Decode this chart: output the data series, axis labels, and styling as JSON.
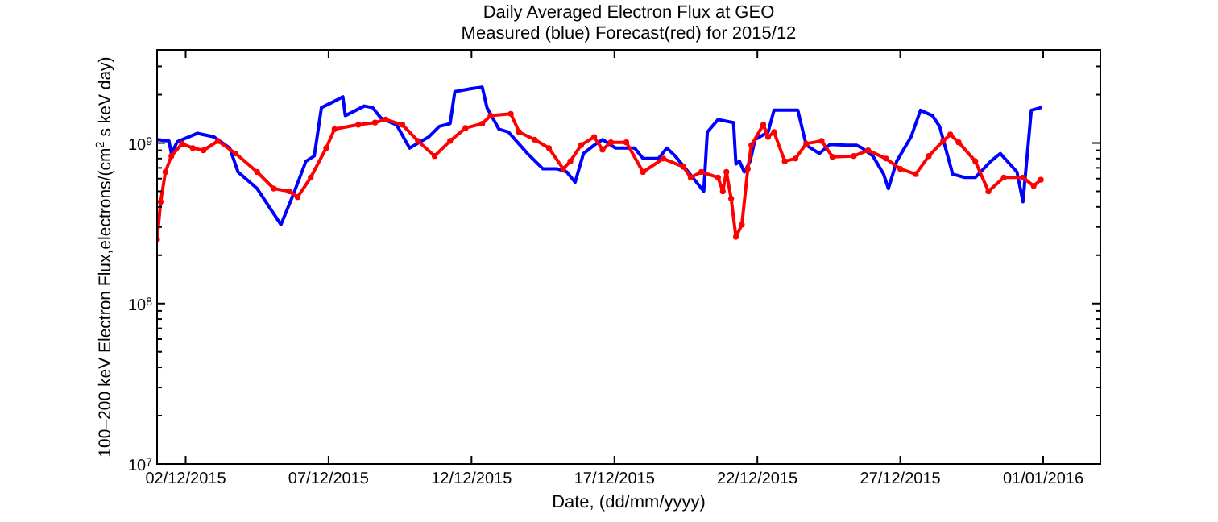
{
  "chart_data": {
    "type": "line",
    "title": "Daily Averaged Electron Flux at GEO",
    "subtitle": "Measured (blue) Forecast(red) for 2015/12",
    "xlabel": "Date, (dd/mm/yyyy)",
    "ylabel": "100–200 keV Electron Flux,electrons/(cm$^{2}$ s keV day)",
    "log": "y",
    "grid": false,
    "xlim": [
      "2015-12-01",
      "2016-01-03"
    ],
    "xticks": [
      {
        "value": "2015-12-02",
        "label": "02/12/2015"
      },
      {
        "value": "2015-12-07",
        "label": "07/12/2015"
      },
      {
        "value": "2015-12-12",
        "label": "12/12/2015"
      },
      {
        "value": "2015-12-17",
        "label": "17/12/2015"
      },
      {
        "value": "2015-12-22",
        "label": "22/12/2015"
      },
      {
        "value": "2015-12-27",
        "label": "27/12/2015"
      },
      {
        "value": "2016-01-01",
        "label": "01/01/2016"
      }
    ],
    "ylim": [
      10000000.0,
      3800000000.0
    ],
    "yticks": [
      {
        "value": 10000000.0,
        "label": "10$^{7}$"
      },
      {
        "value": 20000000.0,
        "label": null
      },
      {
        "value": 30000000.0,
        "label": null
      },
      {
        "value": 40000000.0,
        "label": null
      },
      {
        "value": 50000000.0,
        "label": null
      },
      {
        "value": 60000000.0,
        "label": null
      },
      {
        "value": 70000000.0,
        "label": null
      },
      {
        "value": 80000000.0,
        "label": null
      },
      {
        "value": 90000000.0,
        "label": null
      },
      {
        "value": 100000000.0,
        "label": "10$^{8}$"
      },
      {
        "value": 200000000.0,
        "label": null
      },
      {
        "value": 300000000.0,
        "label": null
      },
      {
        "value": 400000000.0,
        "label": null
      },
      {
        "value": 500000000.0,
        "label": null
      },
      {
        "value": 600000000.0,
        "label": null
      },
      {
        "value": 700000000.0,
        "label": null
      },
      {
        "value": 800000000.0,
        "label": null
      },
      {
        "value": 900000000.0,
        "label": null
      },
      {
        "value": 1000000000.0,
        "label": "10$^{9}$"
      },
      {
        "value": 2000000000.0,
        "label": null
      },
      {
        "value": 3000000000.0,
        "label": null
      }
    ],
    "series": [
      {
        "color": "#0000ff",
        "marker": "none",
        "x": [
          "2015-12-01T00:00",
          "2015-12-01T10:00",
          "2015-12-01T12:00",
          "2015-12-01T17:00",
          "2015-12-02T10:00",
          "2015-12-03T00:00",
          "2015-12-03T13:00",
          "2015-12-03T20:00",
          "2015-12-04T12:00",
          "2015-12-05T08:00",
          "2015-12-05T18:00",
          "2015-12-06T05:00",
          "2015-12-06T12:00",
          "2015-12-06T18:00",
          "2015-12-07T08:00",
          "2015-12-07T12:00",
          "2015-12-07T14:00",
          "2015-12-08T06:00",
          "2015-12-08T13:00",
          "2015-12-08T20:00",
          "2015-12-09T09:00",
          "2015-12-09T20:00",
          "2015-12-10T12:00",
          "2015-12-10T21:00",
          "2015-12-11T06:00",
          "2015-12-11T10:00",
          "2015-12-12T00:00",
          "2015-12-12T09:00",
          "2015-12-12T13:00",
          "2015-12-12T23:00",
          "2015-12-13T07:00",
          "2015-12-13T23:00",
          "2015-12-14T12:00",
          "2015-12-15T00:00",
          "2015-12-15T08:00",
          "2015-12-15T15:00",
          "2015-12-15T22:00",
          "2015-12-16T07:00",
          "2015-12-16T14:00",
          "2015-12-17T01:00",
          "2015-12-17T17:00",
          "2015-12-18T00:00",
          "2015-12-18T13:00",
          "2015-12-18T20:00",
          "2015-12-19T03:00",
          "2015-12-19T14:00",
          "2015-12-20T03:00",
          "2015-12-20T06:00",
          "2015-12-20T15:00",
          "2015-12-21T04:00",
          "2015-12-21T06:00",
          "2015-12-21T09:00",
          "2015-12-21T13:00",
          "2015-12-21T18:00",
          "2015-12-21T22:00",
          "2015-12-22T09:00",
          "2015-12-22T14:00",
          "2015-12-22T23:00",
          "2015-12-23T10:00",
          "2015-12-23T17:00",
          "2015-12-24T04:00",
          "2015-12-24T13:00",
          "2015-12-25T03:00",
          "2015-12-25T11:00",
          "2015-12-25T16:00",
          "2015-12-26T01:00",
          "2015-12-26T10:00",
          "2015-12-26T14:00",
          "2015-12-26T21:00",
          "2015-12-27T09:00",
          "2015-12-27T17:00",
          "2015-12-28T03:00",
          "2015-12-28T09:00",
          "2015-12-28T20:00",
          "2015-12-29T06:00",
          "2015-12-29T15:00",
          "2015-12-30T04:00",
          "2015-12-30T12:00",
          "2015-12-31T02:00",
          "2015-12-31T07:00",
          "2015-12-31T14:00",
          "2015-12-31T22:00"
        ],
        "values": [
          1050000000.0,
          1030000000.0,
          860000000.0,
          1020000000.0,
          1150000000.0,
          1090000000.0,
          930000000.0,
          660000000.0,
          520000000.0,
          310000000.0,
          470000000.0,
          770000000.0,
          830000000.0,
          1660000000.0,
          1870000000.0,
          1940000000.0,
          1480000000.0,
          1700000000.0,
          1660000000.0,
          1430000000.0,
          1300000000.0,
          930000000.0,
          1090000000.0,
          1270000000.0,
          1320000000.0,
          2090000000.0,
          2180000000.0,
          2230000000.0,
          1660000000.0,
          1220000000.0,
          1170000000.0,
          860000000.0,
          690000000.0,
          690000000.0,
          660000000.0,
          570000000.0,
          860000000.0,
          970000000.0,
          1050000000.0,
          930000000.0,
          930000000.0,
          800000000.0,
          800000000.0,
          930000000.0,
          830000000.0,
          660000000.0,
          500000000.0,
          1170000000.0,
          1400000000.0,
          1340000000.0,
          740000000.0,
          770000000.0,
          660000000.0,
          770000000.0,
          1050000000.0,
          1170000000.0,
          1600000000.0,
          1600000000.0,
          1600000000.0,
          970000000.0,
          860000000.0,
          980000000.0,
          970000000.0,
          970000000.0,
          930000000.0,
          830000000.0,
          640000000.0,
          520000000.0,
          770000000.0,
          1090000000.0,
          1600000000.0,
          1480000000.0,
          1270000000.0,
          640000000.0,
          610000000.0,
          610000000.0,
          770000000.0,
          860000000.0,
          660000000.0,
          430000000.0,
          1600000000.0,
          1660000000.0
        ]
      },
      {
        "color": "#ff0000",
        "marker": "circle",
        "x": [
          "2015-12-01T00:00",
          "2015-12-01T03:00",
          "2015-12-01T07:00",
          "2015-12-01T12:00",
          "2015-12-01T21:00",
          "2015-12-02T06:00",
          "2015-12-02T15:00",
          "2015-12-03T03:00",
          "2015-12-03T18:00",
          "2015-12-04T12:00",
          "2015-12-05T02:00",
          "2015-12-05T15:00",
          "2015-12-05T22:00",
          "2015-12-06T09:00",
          "2015-12-06T22:00",
          "2015-12-07T05:00",
          "2015-12-08T01:00",
          "2015-12-08T15:00",
          "2015-12-09T00:00",
          "2015-12-09T14:00",
          "2015-12-10T03:00",
          "2015-12-10T17:00",
          "2015-12-11T06:00",
          "2015-12-11T19:00",
          "2015-12-12T09:00",
          "2015-12-12T16:00",
          "2015-12-13T09:00",
          "2015-12-13T16:00",
          "2015-12-14T05:00",
          "2015-12-14T17:00",
          "2015-12-15T05:00",
          "2015-12-15T11:00",
          "2015-12-15T20:00",
          "2015-12-16T07:00",
          "2015-12-16T14:00",
          "2015-12-16T21:00",
          "2015-12-17T10:00",
          "2015-12-18T00:00",
          "2015-12-18T17:00",
          "2015-12-19T10:00",
          "2015-12-19T16:00",
          "2015-12-20T01:00",
          "2015-12-20T15:00",
          "2015-12-20T19:00",
          "2015-12-20T22:00",
          "2015-12-21T02:00",
          "2015-12-21T06:00",
          "2015-12-21T11:00",
          "2015-12-21T16:00",
          "2015-12-21T19:00",
          "2015-12-22T05:00",
          "2015-12-22T09:00",
          "2015-12-22T14:00",
          "2015-12-22T23:00",
          "2015-12-23T08:00",
          "2015-12-23T17:00",
          "2015-12-24T06:00",
          "2015-12-24T15:00",
          "2015-12-25T09:00",
          "2015-12-25T21:00",
          "2015-12-26T12:00",
          "2015-12-27T00:00",
          "2015-12-27T13:00",
          "2015-12-28T00:00",
          "2015-12-28T12:00",
          "2015-12-28T18:00",
          "2015-12-29T01:00",
          "2015-12-29T15:00",
          "2015-12-30T02:00",
          "2015-12-30T15:00",
          "2015-12-31T07:00",
          "2015-12-31T16:00",
          "2015-12-31T22:00"
        ],
        "values": [
          250000000.0,
          430000000.0,
          660000000.0,
          830000000.0,
          990000000.0,
          930000000.0,
          900000000.0,
          1030000000.0,
          860000000.0,
          660000000.0,
          520000000.0,
          500000000.0,
          460000000.0,
          610000000.0,
          930000000.0,
          1220000000.0,
          1300000000.0,
          1340000000.0,
          1400000000.0,
          1300000000.0,
          1030000000.0,
          830000000.0,
          1030000000.0,
          1240000000.0,
          1320000000.0,
          1480000000.0,
          1520000000.0,
          1170000000.0,
          1050000000.0,
          930000000.0,
          690000000.0,
          770000000.0,
          970000000.0,
          1090000000.0,
          910000000.0,
          1010000000.0,
          1010000000.0,
          660000000.0,
          800000000.0,
          710000000.0,
          610000000.0,
          660000000.0,
          610000000.0,
          500000000.0,
          660000000.0,
          450000000.0,
          260000000.0,
          310000000.0,
          690000000.0,
          970000000.0,
          1300000000.0,
          1090000000.0,
          1170000000.0,
          770000000.0,
          800000000.0,
          990000000.0,
          1030000000.0,
          820000000.0,
          830000000.0,
          900000000.0,
          800000000.0,
          690000000.0,
          640000000.0,
          830000000.0,
          1030000000.0,
          1130000000.0,
          1010000000.0,
          770000000.0,
          500000000.0,
          610000000.0,
          610000000.0,
          540000000.0,
          590000000.0
        ]
      }
    ]
  }
}
